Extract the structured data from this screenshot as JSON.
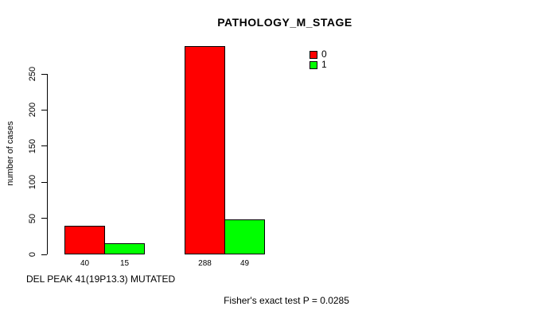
{
  "chart_data": {
    "type": "bar",
    "title": "PATHOLOGY_M_STAGE",
    "ylabel": "number of cases",
    "xlabel": "DEL PEAK 41(19P13.3) MUTATED",
    "ylim": [
      0,
      250
    ],
    "yticks": [
      0,
      50,
      100,
      150,
      200,
      250
    ],
    "grid": false,
    "legend_position": "top-right",
    "groups": 2,
    "series": [
      {
        "name": "0",
        "color": "#ff0000",
        "values": [
          40,
          288
        ]
      },
      {
        "name": "1",
        "color": "#00ff00",
        "values": [
          15,
          49
        ]
      }
    ],
    "bar_value_labels": [
      "40",
      "15",
      "288",
      "49"
    ],
    "annotation": "Fisher's exact test P = 0.0285"
  },
  "colors": {
    "axis": "#000000",
    "background": "#ffffff",
    "series0": "#ff0000",
    "series1": "#00ff00"
  }
}
